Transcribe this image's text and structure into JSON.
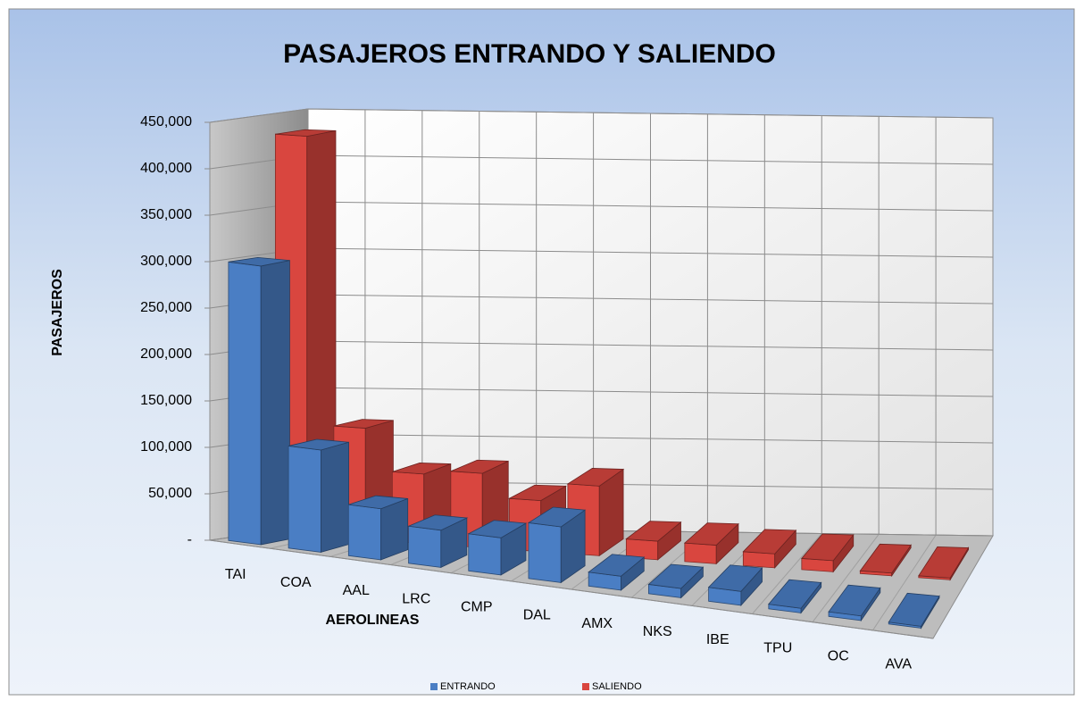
{
  "chart_data": {
    "type": "bar3d",
    "title": "PASAJEROS ENTRANDO Y SALIENDO",
    "x_label": "AEROLINEAS",
    "y_label": "PASAJEROS",
    "categories": [
      "TAI",
      "COA",
      "AAL",
      "LRC",
      "CMP",
      "DAL",
      "AMX",
      "NKS",
      "IBE",
      "TPU",
      "OC",
      "AVA"
    ],
    "series": [
      {
        "name": "ENTRANDO",
        "color": "#4a7ec4",
        "values": [
          300000,
          110000,
          55000,
          40000,
          40000,
          60000,
          15000,
          10000,
          15000,
          5000,
          5000,
          2000
        ]
      },
      {
        "name": "SALIENDO",
        "color": "#d9463f",
        "values": [
          430000,
          120000,
          75000,
          80000,
          55000,
          75000,
          20000,
          20000,
          15000,
          12000,
          3000,
          2000
        ]
      }
    ],
    "ylim": [
      0,
      450000
    ],
    "yticks": [
      {
        "value": 0,
        "label": "-"
      },
      {
        "value": 50000,
        "label": "50,000"
      },
      {
        "value": 100000,
        "label": "100,000"
      },
      {
        "value": 150000,
        "label": "150,000"
      },
      {
        "value": 200000,
        "label": "200,000"
      },
      {
        "value": 250000,
        "label": "250,000"
      },
      {
        "value": 300000,
        "label": "300,000"
      },
      {
        "value": 350000,
        "label": "350,000"
      },
      {
        "value": 400000,
        "label": "400,000"
      },
      {
        "value": 450000,
        "label": "450,000"
      }
    ],
    "grid": true,
    "legend": "bottom"
  }
}
